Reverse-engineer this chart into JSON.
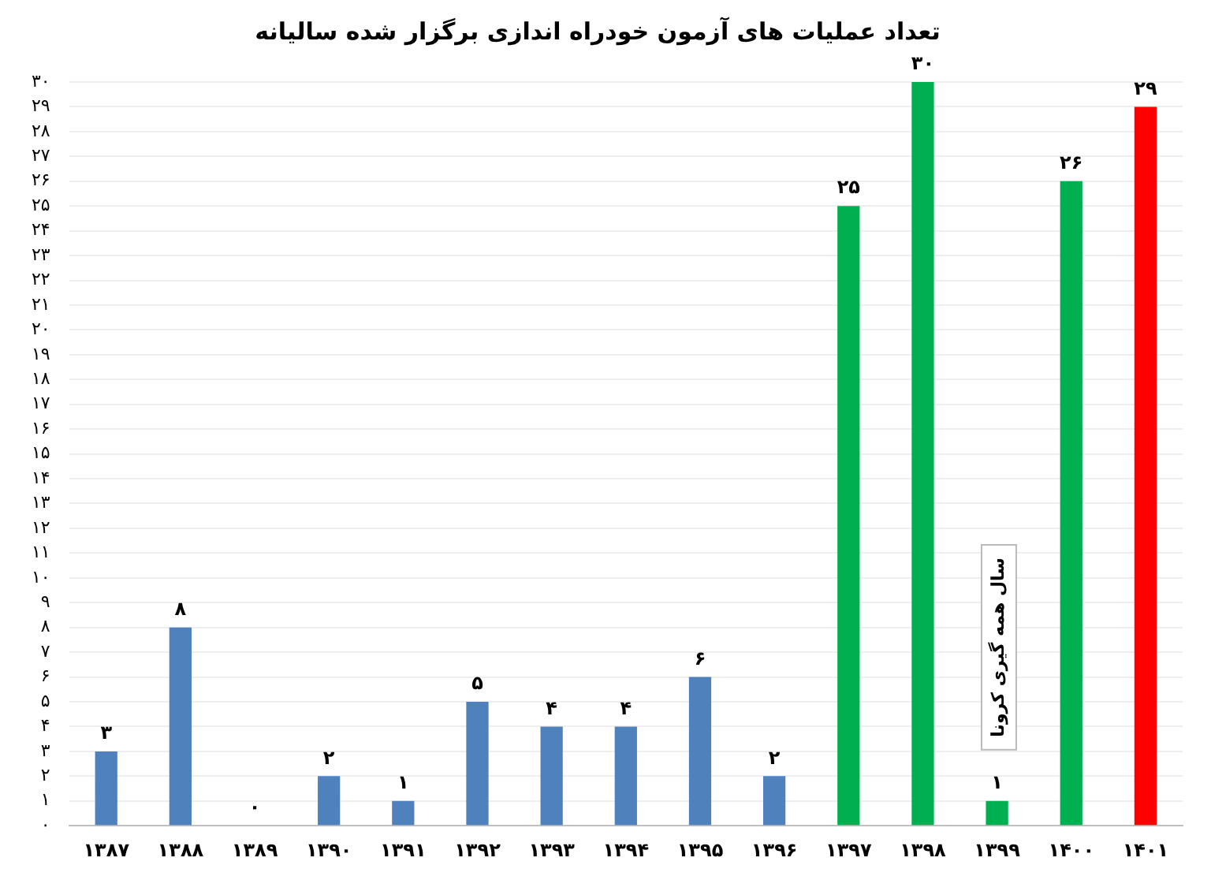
{
  "chart_data": {
    "type": "bar",
    "title": "تعداد عملیات های آزمون خودراه اندازی برگزار شده سالیانه",
    "categories": [
      "۱۳۸۷",
      "۱۳۸۸",
      "۱۳۸۹",
      "۱۳۹۰",
      "۱۳۹۱",
      "۱۳۹۲",
      "۱۳۹۳",
      "۱۳۹۴",
      "۱۳۹۵",
      "۱۳۹۶",
      "۱۳۹۷",
      "۱۳۹۸",
      "۱۳۹۹",
      "۱۴۰۰",
      "۱۴۰۱"
    ],
    "values": [
      3,
      8,
      0,
      2,
      1,
      5,
      4,
      4,
      6,
      2,
      25,
      30,
      1,
      26,
      29
    ],
    "colors": [
      "#4f81bd",
      "#4f81bd",
      "#4f81bd",
      "#4f81bd",
      "#4f81bd",
      "#4f81bd",
      "#4f81bd",
      "#4f81bd",
      "#4f81bd",
      "#4f81bd",
      "#00b050",
      "#00b050",
      "#00b050",
      "#00b050",
      "#ff0000"
    ],
    "value_labels": [
      "۳",
      "۸",
      "۰",
      "۲",
      "۱",
      "۵",
      "۴",
      "۴",
      "۶",
      "۲",
      "۲۵",
      "۳۰",
      "۱",
      "۲۶",
      "۲۹"
    ],
    "ylim": [
      0,
      30
    ],
    "yticks": [
      {
        "value": 0,
        "label": "۰"
      },
      {
        "value": 1,
        "label": "۱"
      },
      {
        "value": 2,
        "label": "۲"
      },
      {
        "value": 3,
        "label": "۳"
      },
      {
        "value": 4,
        "label": "۴"
      },
      {
        "value": 5,
        "label": "۵"
      },
      {
        "value": 6,
        "label": "۶"
      },
      {
        "value": 7,
        "label": "۷"
      },
      {
        "value": 8,
        "label": "۸"
      },
      {
        "value": 9,
        "label": "۹"
      },
      {
        "value": 10,
        "label": "۱۰"
      },
      {
        "value": 11,
        "label": "۱۱"
      },
      {
        "value": 12,
        "label": "۱۲"
      },
      {
        "value": 13,
        "label": "۱۳"
      },
      {
        "value": 14,
        "label": "۱۴"
      },
      {
        "value": 15,
        "label": "۱۵"
      },
      {
        "value": 16,
        "label": "۱۶"
      },
      {
        "value": 17,
        "label": "۱۷"
      },
      {
        "value": 18,
        "label": "۱۸"
      },
      {
        "value": 19,
        "label": "۱۹"
      },
      {
        "value": 20,
        "label": "۲۰"
      },
      {
        "value": 21,
        "label": "۲۱"
      },
      {
        "value": 22,
        "label": "۲۲"
      },
      {
        "value": 23,
        "label": "۲۳"
      },
      {
        "value": 24,
        "label": "۲۴"
      },
      {
        "value": 25,
        "label": "۲۵"
      },
      {
        "value": 26,
        "label": "۲۶"
      },
      {
        "value": 27,
        "label": "۲۷"
      },
      {
        "value": 28,
        "label": "۲۸"
      },
      {
        "value": 29,
        "label": "۲۹"
      },
      {
        "value": 30,
        "label": "۳۰"
      }
    ],
    "grid": "y",
    "annotations": [
      "سال همه گیری کرونا"
    ]
  }
}
